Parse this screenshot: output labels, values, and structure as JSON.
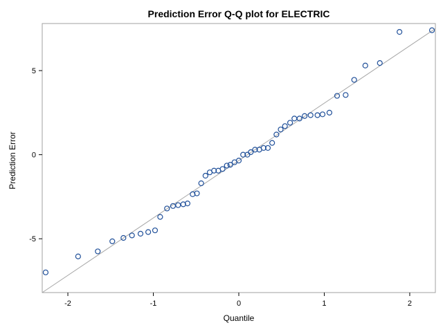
{
  "chart_data": {
    "type": "scatter",
    "title": "Prediction Error Q-Q plot for ELECTRIC",
    "xlabel": "Quantile",
    "ylabel": "Prediction Error",
    "xlim": [
      -2.3,
      2.3
    ],
    "ylim": [
      -8.2,
      7.8
    ],
    "xticks": [
      -2,
      -1,
      0,
      1,
      2
    ],
    "yticks": [
      -5,
      0,
      5
    ],
    "grid": false,
    "reference_line": {
      "from": [
        -2.3,
        -8.2
      ],
      "to": [
        2.3,
        7.5
      ],
      "color": "#a6a6a6"
    },
    "marker_color": "#1f4f99",
    "points": [
      [
        -2.26,
        -7.0
      ],
      [
        -1.88,
        -6.05
      ],
      [
        -1.65,
        -5.75
      ],
      [
        -1.48,
        -5.15
      ],
      [
        -1.35,
        -4.95
      ],
      [
        -1.25,
        -4.8
      ],
      [
        -1.15,
        -4.7
      ],
      [
        -1.06,
        -4.6
      ],
      [
        -0.98,
        -4.5
      ],
      [
        -0.92,
        -3.7
      ],
      [
        -0.84,
        -3.2
      ],
      [
        -0.77,
        -3.05
      ],
      [
        -0.71,
        -3.0
      ],
      [
        -0.65,
        -2.95
      ],
      [
        -0.6,
        -2.9
      ],
      [
        -0.54,
        -2.35
      ],
      [
        -0.49,
        -2.3
      ],
      [
        -0.44,
        -1.7
      ],
      [
        -0.39,
        -1.25
      ],
      [
        -0.34,
        -1.05
      ],
      [
        -0.29,
        -0.95
      ],
      [
        -0.24,
        -0.95
      ],
      [
        -0.19,
        -0.85
      ],
      [
        -0.14,
        -0.65
      ],
      [
        -0.1,
        -0.6
      ],
      [
        -0.05,
        -0.45
      ],
      [
        0.0,
        -0.35
      ],
      [
        0.05,
        0.0
      ],
      [
        0.1,
        0.0
      ],
      [
        0.14,
        0.15
      ],
      [
        0.19,
        0.3
      ],
      [
        0.24,
        0.3
      ],
      [
        0.29,
        0.4
      ],
      [
        0.34,
        0.4
      ],
      [
        0.39,
        0.7
      ],
      [
        0.44,
        1.2
      ],
      [
        0.49,
        1.5
      ],
      [
        0.54,
        1.7
      ],
      [
        0.6,
        1.9
      ],
      [
        0.65,
        2.15
      ],
      [
        0.71,
        2.15
      ],
      [
        0.77,
        2.3
      ],
      [
        0.84,
        2.35
      ],
      [
        0.92,
        2.35
      ],
      [
        0.98,
        2.4
      ],
      [
        1.06,
        2.5
      ],
      [
        1.15,
        3.5
      ],
      [
        1.25,
        3.55
      ],
      [
        1.35,
        4.45
      ],
      [
        1.48,
        5.3
      ],
      [
        1.65,
        5.45
      ],
      [
        1.88,
        7.3
      ],
      [
        2.26,
        7.4
      ]
    ]
  }
}
